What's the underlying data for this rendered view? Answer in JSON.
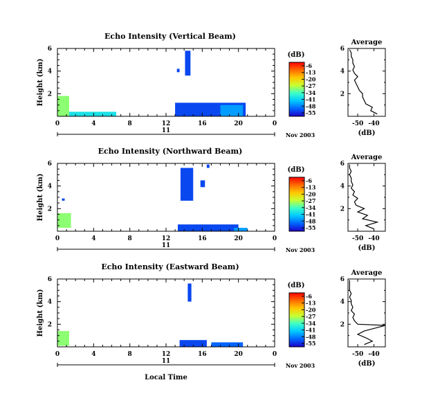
{
  "figure": {
    "date_label": "Nov 2003",
    "day_label": "11",
    "xlabel_bottom": "Local Time"
  },
  "colorbar": {
    "unit": "(dB)",
    "ticks": [
      "-6",
      "-13",
      "-20",
      "-27",
      "-34",
      "-41",
      "-48",
      "-55"
    ],
    "colors": [
      "#ff0000",
      "#ff6a00",
      "#ffc800",
      "#c8ff32",
      "#3cffc8",
      "#00c8ff",
      "#0064ff",
      "#1e00c8"
    ]
  },
  "chart_data": [
    {
      "type": "heatmap",
      "title": "Echo Intensity (Vertical Beam)",
      "ylabel": "Height (km)",
      "xticks": [
        "0",
        "4",
        "8",
        "12",
        "16",
        "20",
        "0"
      ],
      "yticks": [
        "2",
        "4",
        "6"
      ],
      "xlim": [
        0,
        24
      ],
      "ylim": [
        0,
        6
      ],
      "cells": [
        {
          "t0": 0.0,
          "t1": 1.3,
          "h0": 0.0,
          "h1": 1.8,
          "intensity": -30
        },
        {
          "t0": 1.3,
          "t1": 6.5,
          "h0": 0.0,
          "h1": 0.4,
          "intensity": -38
        },
        {
          "t0": 14.1,
          "t1": 14.7,
          "h0": 3.6,
          "h1": 5.8,
          "intensity": -50
        },
        {
          "t0": 13.2,
          "t1": 13.5,
          "h0": 3.9,
          "h1": 4.2,
          "intensity": -50
        },
        {
          "t0": 13.0,
          "t1": 20.8,
          "h0": 0.0,
          "h1": 1.2,
          "intensity": -50
        },
        {
          "t0": 18.0,
          "t1": 20.5,
          "h0": 0.0,
          "h1": 1.0,
          "intensity": -44
        }
      ],
      "profile": {
        "title": "Average",
        "xlabel": "(dB)",
        "xticks": [
          "-50",
          "-40"
        ],
        "yticks": [
          "2",
          "4",
          "6"
        ],
        "xlim": [
          -56,
          -33
        ],
        "ylim": [
          0,
          6
        ],
        "heights": [
          0.2,
          0.5,
          0.8,
          1.1,
          1.4,
          1.7,
          2.0,
          2.3,
          2.6,
          2.9,
          3.2,
          3.5,
          3.8,
          4.1,
          4.4,
          4.7,
          5.0,
          5.3,
          5.6,
          5.9
        ],
        "values": [
          -38,
          -42,
          -41,
          -45,
          -46,
          -47,
          -47,
          -49,
          -50,
          -51,
          -52,
          -50,
          -52,
          -53,
          -52,
          -53,
          -53,
          -54,
          -54,
          -55
        ]
      }
    },
    {
      "type": "heatmap",
      "title": "Echo Intensity (Northward Beam)",
      "ylabel": "Height (km)",
      "xticks": [
        "0",
        "4",
        "8",
        "12",
        "16",
        "20",
        "0"
      ],
      "yticks": [
        "2",
        "4",
        "6"
      ],
      "xlim": [
        0,
        24
      ],
      "ylim": [
        0,
        6
      ],
      "cells": [
        {
          "t0": 0.0,
          "t1": 1.5,
          "h0": 0.3,
          "h1": 1.6,
          "intensity": -30
        },
        {
          "t0": 0.5,
          "t1": 0.8,
          "h0": 2.7,
          "h1": 2.9,
          "intensity": -50
        },
        {
          "t0": 13.6,
          "t1": 15.0,
          "h0": 2.7,
          "h1": 5.6,
          "intensity": -50
        },
        {
          "t0": 15.8,
          "t1": 16.3,
          "h0": 3.9,
          "h1": 4.5,
          "intensity": -50
        },
        {
          "t0": 16.5,
          "t1": 16.8,
          "h0": 5.6,
          "h1": 5.9,
          "intensity": -50
        },
        {
          "t0": 13.3,
          "t1": 20.0,
          "h0": 0.0,
          "h1": 0.6,
          "intensity": -50
        },
        {
          "t0": 19.5,
          "t1": 21.0,
          "h0": 0.0,
          "h1": 0.3,
          "intensity": -44
        }
      ],
      "profile": {
        "title": "Average",
        "xlabel": "(dB)",
        "xticks": [
          "-50",
          "-40"
        ],
        "yticks": [
          "2",
          "4",
          "6"
        ],
        "xlim": [
          -56,
          -33
        ],
        "ylim": [
          0,
          6
        ],
        "heights": [
          0.2,
          0.5,
          0.8,
          1.1,
          1.4,
          1.7,
          2.0,
          2.3,
          2.6,
          2.9,
          3.2,
          3.5,
          3.8,
          4.1,
          4.4,
          4.7,
          5.0,
          5.3,
          5.6,
          5.9
        ],
        "values": [
          -40,
          -45,
          -38,
          -47,
          -44,
          -50,
          -46,
          -51,
          -52,
          -50,
          -53,
          -52,
          -54,
          -53,
          -54,
          -54,
          -55,
          -54,
          -55,
          -55
        ]
      }
    },
    {
      "type": "heatmap",
      "title": "Echo Intensity (Eastward Beam)",
      "ylabel": "Height (km)",
      "xticks": [
        "0",
        "4",
        "8",
        "12",
        "16",
        "20",
        "0"
      ],
      "yticks": [
        "2",
        "4",
        "6"
      ],
      "xlim": [
        0,
        24
      ],
      "ylim": [
        0,
        6
      ],
      "cells": [
        {
          "t0": 0.0,
          "t1": 1.3,
          "h0": 0.1,
          "h1": 1.4,
          "intensity": -30
        },
        {
          "t0": 14.4,
          "t1": 14.8,
          "h0": 4.0,
          "h1": 5.6,
          "intensity": -50
        },
        {
          "t0": 13.5,
          "t1": 16.5,
          "h0": 0.0,
          "h1": 0.6,
          "intensity": -50
        },
        {
          "t0": 17.0,
          "t1": 20.5,
          "h0": 0.0,
          "h1": 0.4,
          "intensity": -48
        }
      ],
      "profile": {
        "title": "Average",
        "xlabel": "(dB)",
        "xticks": [
          "-50",
          "-40"
        ],
        "yticks": [
          "2",
          "4",
          "6"
        ],
        "xlim": [
          -56,
          -33
        ],
        "ylim": [
          0,
          6
        ],
        "heights": [
          0.2,
          0.5,
          0.8,
          1.1,
          1.4,
          1.7,
          1.9,
          2.0,
          2.3,
          2.6,
          2.9,
          3.2,
          3.5,
          3.8,
          4.1,
          4.4,
          4.7,
          5.0,
          5.3,
          5.6,
          5.9
        ],
        "values": [
          -46,
          -41,
          -45,
          -50,
          -46,
          -38,
          -33,
          -50,
          -52,
          -53,
          -52,
          -54,
          -53,
          -54,
          -54,
          -55,
          -54,
          -55,
          -55,
          -55,
          -55
        ]
      }
    }
  ]
}
